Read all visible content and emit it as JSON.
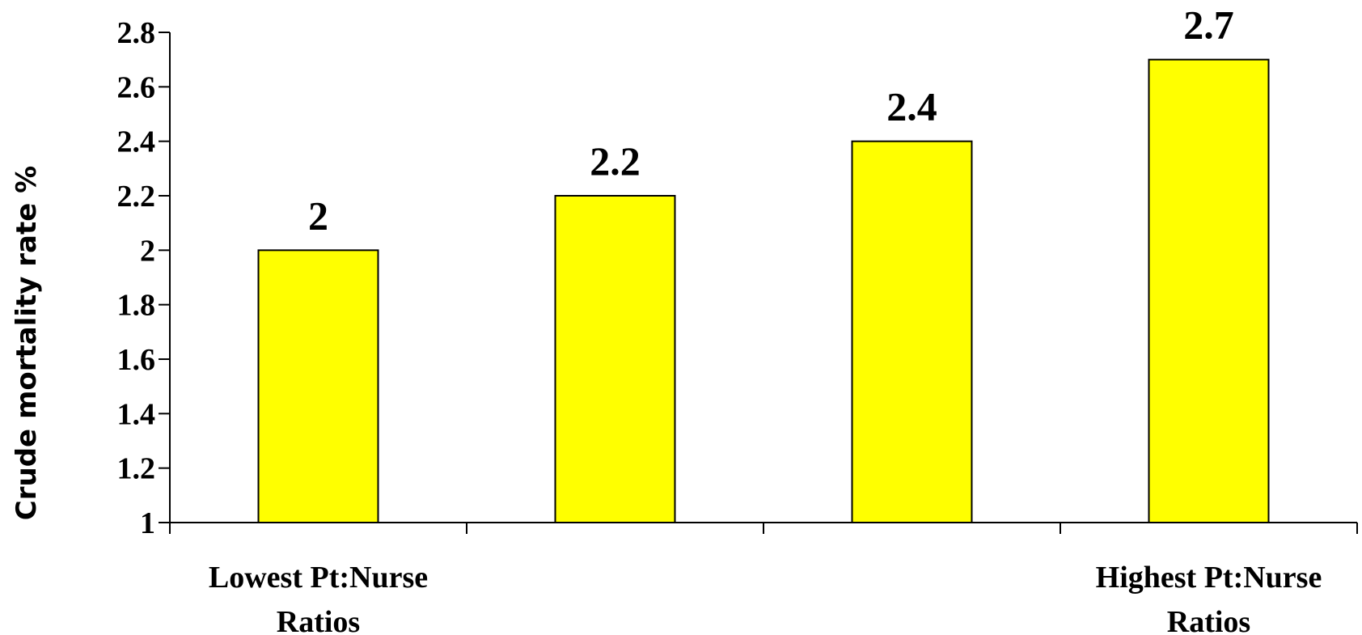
{
  "chart_data": {
    "type": "bar",
    "title": "",
    "xlabel": "",
    "ylabel": "Crude mortality rate %",
    "categories": [
      [
        "Lowest Pt:Nurse",
        "Ratios"
      ],
      [
        "",
        ""
      ],
      [
        "",
        ""
      ],
      [
        "Highest Pt:Nurse",
        "Ratios"
      ]
    ],
    "values": [
      2,
      2.2,
      2.4,
      2.7
    ],
    "data_labels": [
      "2",
      "2.2",
      "2.4",
      "2.7"
    ],
    "ylim": [
      1,
      2.8
    ],
    "yticks": [
      "1",
      "1.2",
      "1.4",
      "1.6",
      "1.8",
      "2",
      "2.2",
      "2.4",
      "2.6",
      "2.8"
    ],
    "bar_color": "#ffff00",
    "grid": false,
    "legend": "none"
  }
}
